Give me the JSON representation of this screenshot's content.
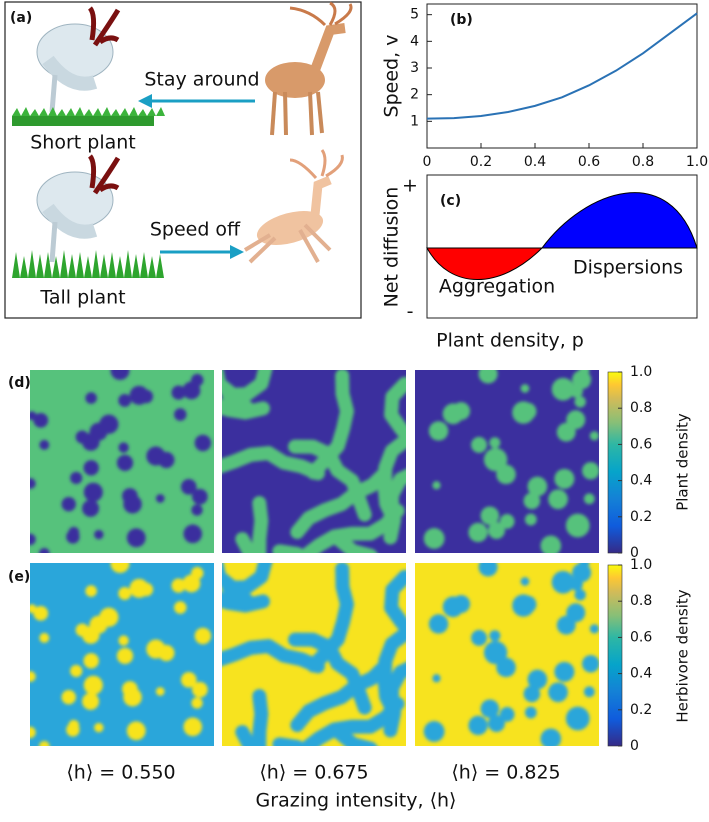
{
  "panel_a": {
    "label": "(a)",
    "top_action": "Stay around",
    "top_plant": "Short plant",
    "bottom_action": "Speed off",
    "bottom_plant": "Tall plant"
  },
  "chart_data": {
    "type": "line",
    "panel_label": "(b)",
    "ylabel": "Speed, v",
    "xlabel": "Plant density, p",
    "x": [
      0,
      0.1,
      0.2,
      0.3,
      0.4,
      0.5,
      0.6,
      0.7,
      0.8,
      0.9,
      1.0
    ],
    "values": [
      1.1,
      1.12,
      1.2,
      1.35,
      1.58,
      1.9,
      2.35,
      2.9,
      3.55,
      4.3,
      5.05
    ],
    "color": "#2a72b5",
    "xlim": [
      0,
      1
    ],
    "ylim": [
      0,
      5.4
    ],
    "xticks": [
      0,
      0.2,
      0.4,
      0.6,
      0.8,
      {
        "value": 1,
        "label": "1.0"
      }
    ],
    "yticks": [
      1,
      2,
      3,
      4,
      5
    ]
  },
  "panel_c": {
    "label": "(c)",
    "ylabel": "Net diffusion",
    "plus": "+",
    "minus": "-",
    "negative_label": "Aggregation",
    "positive_label": "Dispersions"
  },
  "panel_d": {
    "label": "(d)",
    "colorbar_label": "Plant density",
    "colorbar_lim": [
      0,
      1
    ],
    "colorbar_ticks": [
      0,
      0.2,
      0.4,
      0.6,
      0.8,
      {
        "value": 1,
        "label": "1.0"
      }
    ]
  },
  "panel_e": {
    "label": "(e)",
    "colorbar_label": "Herbivore density",
    "colorbar_lim": [
      0,
      1
    ],
    "colorbar_ticks": [
      0,
      0.2,
      0.4,
      0.6,
      0.8,
      {
        "value": 1,
        "label": "1.0"
      }
    ]
  },
  "columns": [
    "⟨h⟩ = 0.550",
    "⟨h⟩ = 0.675",
    "⟨h⟩ = 0.825"
  ],
  "xlabel": "Grazing intensity, ⟨h⟩"
}
